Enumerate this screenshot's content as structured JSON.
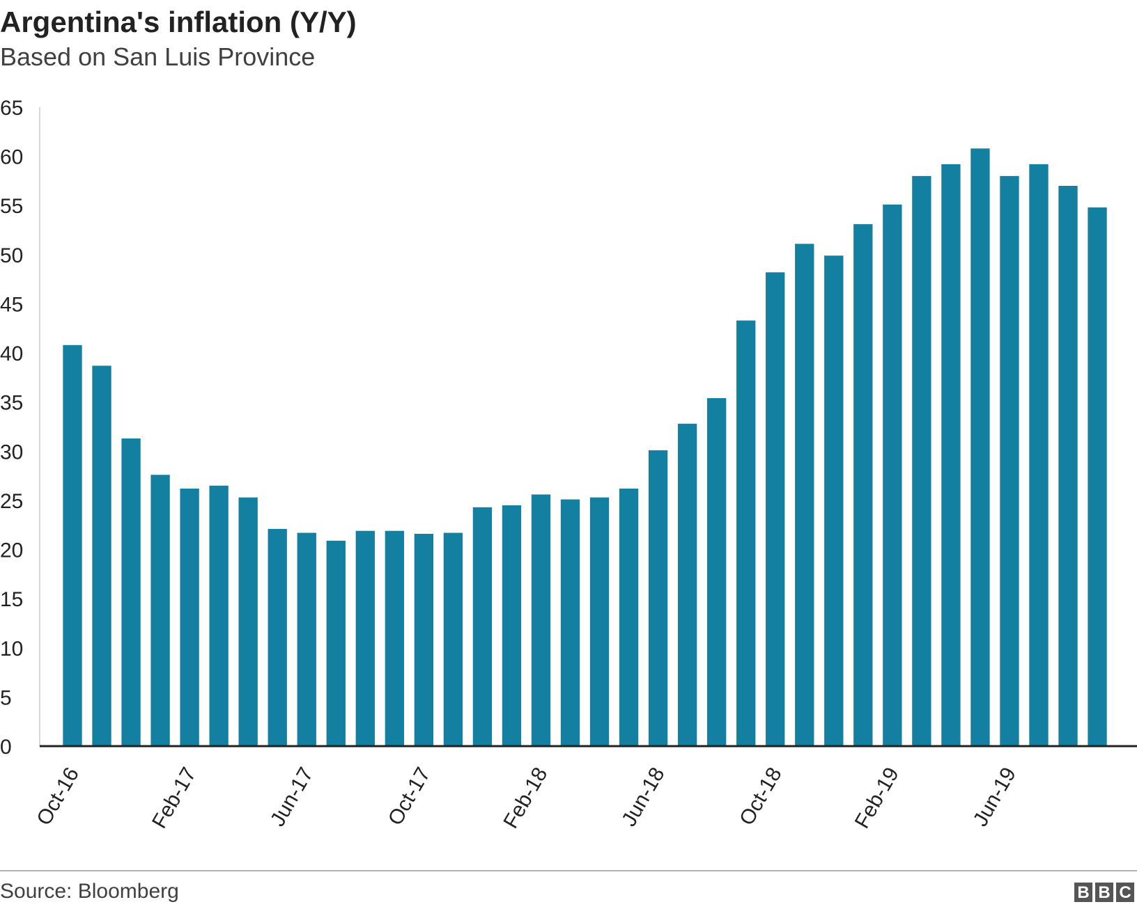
{
  "chart_data": {
    "type": "bar",
    "title": "Argentina's inflation (Y/Y)",
    "subtitle": "Based on San Luis Province",
    "source": "Source: Bloomberg",
    "logo": [
      "B",
      "B",
      "C"
    ],
    "categories": [
      "Oct-16",
      null,
      null,
      null,
      "Feb-17",
      null,
      null,
      null,
      "Jun-17",
      null,
      null,
      null,
      "Oct-17",
      null,
      null,
      null,
      "Feb-18",
      null,
      null,
      null,
      "Jun-18",
      null,
      null,
      null,
      "Oct-18",
      null,
      null,
      null,
      "Feb-19",
      null,
      null,
      null,
      "Jun-19",
      null,
      null,
      null
    ],
    "values": [
      40.8,
      38.7,
      31.3,
      27.6,
      26.2,
      26.5,
      25.3,
      22.1,
      21.7,
      20.9,
      21.9,
      21.9,
      21.6,
      21.7,
      24.3,
      24.5,
      25.6,
      25.1,
      25.3,
      26.2,
      30.1,
      32.8,
      35.4,
      43.3,
      48.2,
      51.1,
      49.9,
      53.1,
      55.1,
      58.0,
      59.2,
      60.8,
      58.0,
      59.2,
      57.0,
      54.8
    ],
    "color": "#1380a1",
    "ylim": [
      0,
      65
    ],
    "yticks": [
      0,
      5,
      10,
      15,
      20,
      25,
      30,
      35,
      40,
      45,
      50,
      55,
      60,
      65
    ],
    "grid": false
  }
}
